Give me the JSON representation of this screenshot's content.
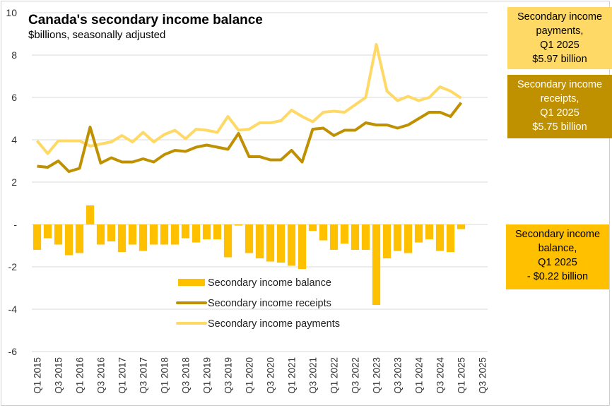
{
  "title": "Canada's secondary income balance",
  "subtitle": "$billions, seasonally adjusted",
  "callouts": {
    "payments": [
      "Secondary income",
      "payments,",
      "Q1 2025",
      "$5.97 billion"
    ],
    "receipts": [
      "Secondary income",
      "receipts,",
      "Q1 2025",
      "$5.75 billion"
    ],
    "balance": [
      "Secondary income",
      "balance,",
      "Q1 2025",
      "- $0.22 billion"
    ]
  },
  "colors": {
    "balance": "#FFC000",
    "receipts": "#BF9000",
    "payments": "#FFD966"
  },
  "chart_data": {
    "type": "bar+line",
    "title": "Canada's secondary income balance",
    "ylabel": "$billions, seasonally adjusted",
    "ylim": [
      -6,
      10
    ],
    "yticks": [
      "-6",
      "-4",
      "-2",
      "-",
      "2",
      "4",
      "6",
      "8",
      "10"
    ],
    "xticks": [
      "Q1 2015",
      "Q3 2015",
      "Q1 2016",
      "Q3 2016",
      "Q1 2017",
      "Q3 2017",
      "Q1 2018",
      "Q3 2018",
      "Q1 2019",
      "Q3 2019",
      "Q1 2020",
      "Q3 2020",
      "Q1 2021",
      "Q3 2021",
      "Q1 2022",
      "Q3 2022",
      "Q1 2023",
      "Q3 2023",
      "Q1 2024",
      "Q3 2024",
      "Q1 2025",
      "Q3 2025"
    ],
    "n_categories": 43,
    "legend": [
      "Secondary income balance",
      "Secondary income receipts",
      "Secondary income payments"
    ],
    "series": [
      {
        "name": "Secondary income balance",
        "type": "bar",
        "values": [
          -1.2,
          -0.65,
          -0.95,
          -1.45,
          -1.35,
          0.9,
          -0.95,
          -0.8,
          -1.3,
          -0.95,
          -1.25,
          -0.95,
          -0.95,
          -0.95,
          -0.65,
          -0.85,
          -0.7,
          -0.7,
          -1.55,
          -0.05,
          -1.35,
          -1.6,
          -1.75,
          -1.8,
          -1.95,
          -2.1,
          -0.3,
          -0.75,
          -1.2,
          -0.9,
          -1.2,
          -1.2,
          -3.8,
          -1.6,
          -1.25,
          -1.35,
          -0.85,
          -0.7,
          -1.25,
          -1.3,
          -0.22
        ]
      },
      {
        "name": "Secondary income receipts",
        "type": "line",
        "values": [
          2.75,
          2.7,
          3.0,
          2.5,
          2.65,
          4.6,
          2.9,
          3.15,
          2.95,
          2.95,
          3.1,
          2.95,
          3.3,
          3.5,
          3.45,
          3.65,
          3.75,
          3.65,
          3.55,
          4.3,
          3.2,
          3.2,
          3.05,
          3.05,
          3.5,
          2.95,
          4.5,
          4.55,
          4.2,
          4.45,
          4.45,
          4.8,
          4.7,
          4.7,
          4.55,
          4.7,
          5.0,
          5.3,
          5.3,
          5.1,
          5.75
        ]
      },
      {
        "name": "Secondary income payments",
        "type": "line",
        "values": [
          3.95,
          3.35,
          3.95,
          3.95,
          3.95,
          3.7,
          3.8,
          3.9,
          4.2,
          3.9,
          4.35,
          3.9,
          4.25,
          4.45,
          4.05,
          4.5,
          4.45,
          4.35,
          5.1,
          4.45,
          4.5,
          4.8,
          4.8,
          4.9,
          5.4,
          5.1,
          4.85,
          5.3,
          5.35,
          5.3,
          5.65,
          6.0,
          8.5,
          6.3,
          5.85,
          6.05,
          5.85,
          6.0,
          6.5,
          6.3,
          5.97
        ]
      }
    ]
  }
}
